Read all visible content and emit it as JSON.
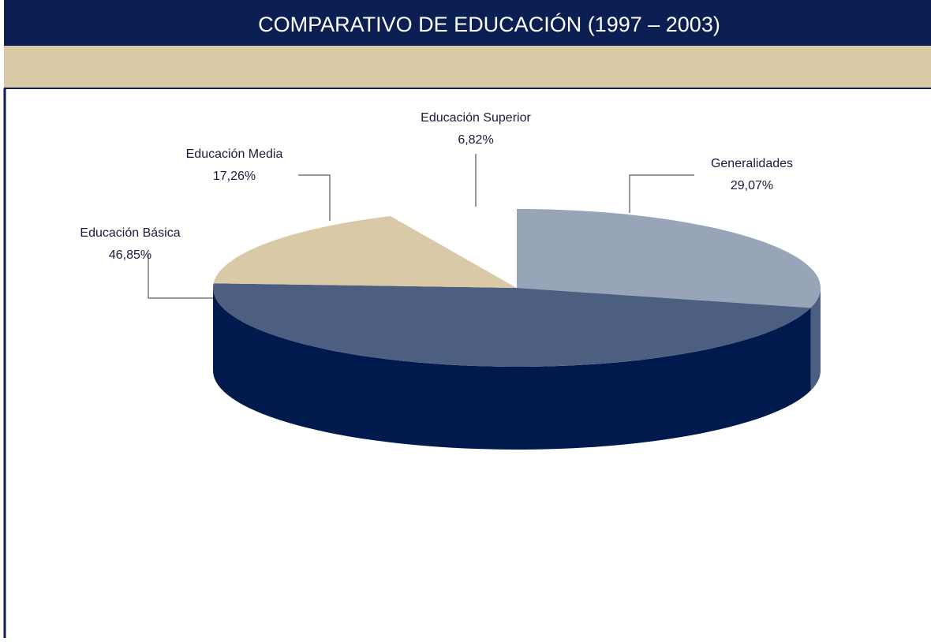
{
  "chart_data": {
    "type": "pie",
    "title": "COMPARATIVO DE EDUCACIÓN (1997 – 2003)",
    "categories": [
      "Generalidades",
      "Educación Básica",
      "Educación Media",
      "Educación Superior"
    ],
    "values": [
      29.07,
      46.85,
      17.26,
      6.82
    ],
    "value_labels": [
      "29,07%",
      "46,85%",
      "17,26%",
      "6,82%"
    ],
    "colors": [
      "#98a4b8",
      "#4d5f80",
      "#d9c9a6",
      "#ffffff"
    ],
    "side_colors": [
      "#4d5f80",
      "#001a4d",
      "#b8a880",
      "#e0e0e0"
    ]
  }
}
